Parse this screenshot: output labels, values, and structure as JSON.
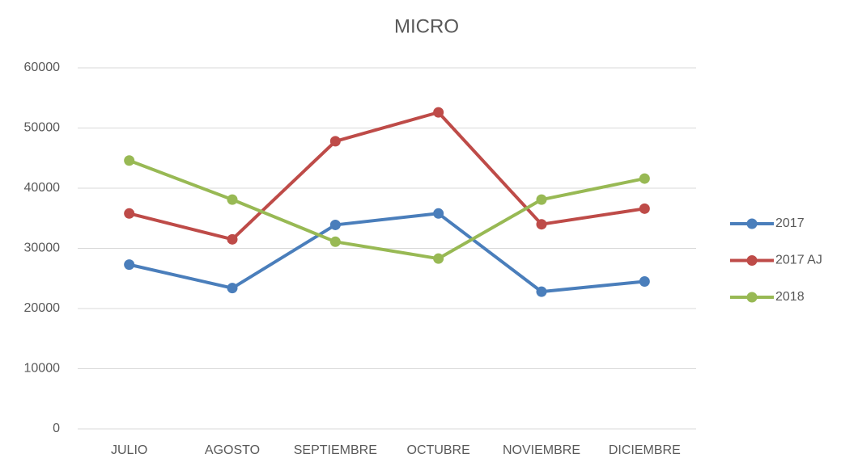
{
  "chart_data": {
    "type": "line",
    "title": "MICRO",
    "categories": [
      "JULIO",
      "AGOSTO",
      "SEPTIEMBRE",
      "OCTUBRE",
      "NOVIEMBRE",
      "DICIEMBRE"
    ],
    "series": [
      {
        "name": "2017",
        "color": "#4a7ebb",
        "values": [
          27300,
          23400,
          33900,
          35800,
          22800,
          24500
        ]
      },
      {
        "name": "2017 AJ",
        "color": "#be4b48",
        "values": [
          35800,
          31500,
          47800,
          52600,
          34000,
          36600
        ]
      },
      {
        "name": "2018",
        "color": "#98b954",
        "values": [
          44600,
          38100,
          31100,
          28300,
          38100,
          41600
        ]
      }
    ],
    "ylim": [
      0,
      60000
    ],
    "yticks": [
      0,
      10000,
      20000,
      30000,
      40000,
      50000,
      60000
    ],
    "grid": true,
    "legend": "right"
  }
}
